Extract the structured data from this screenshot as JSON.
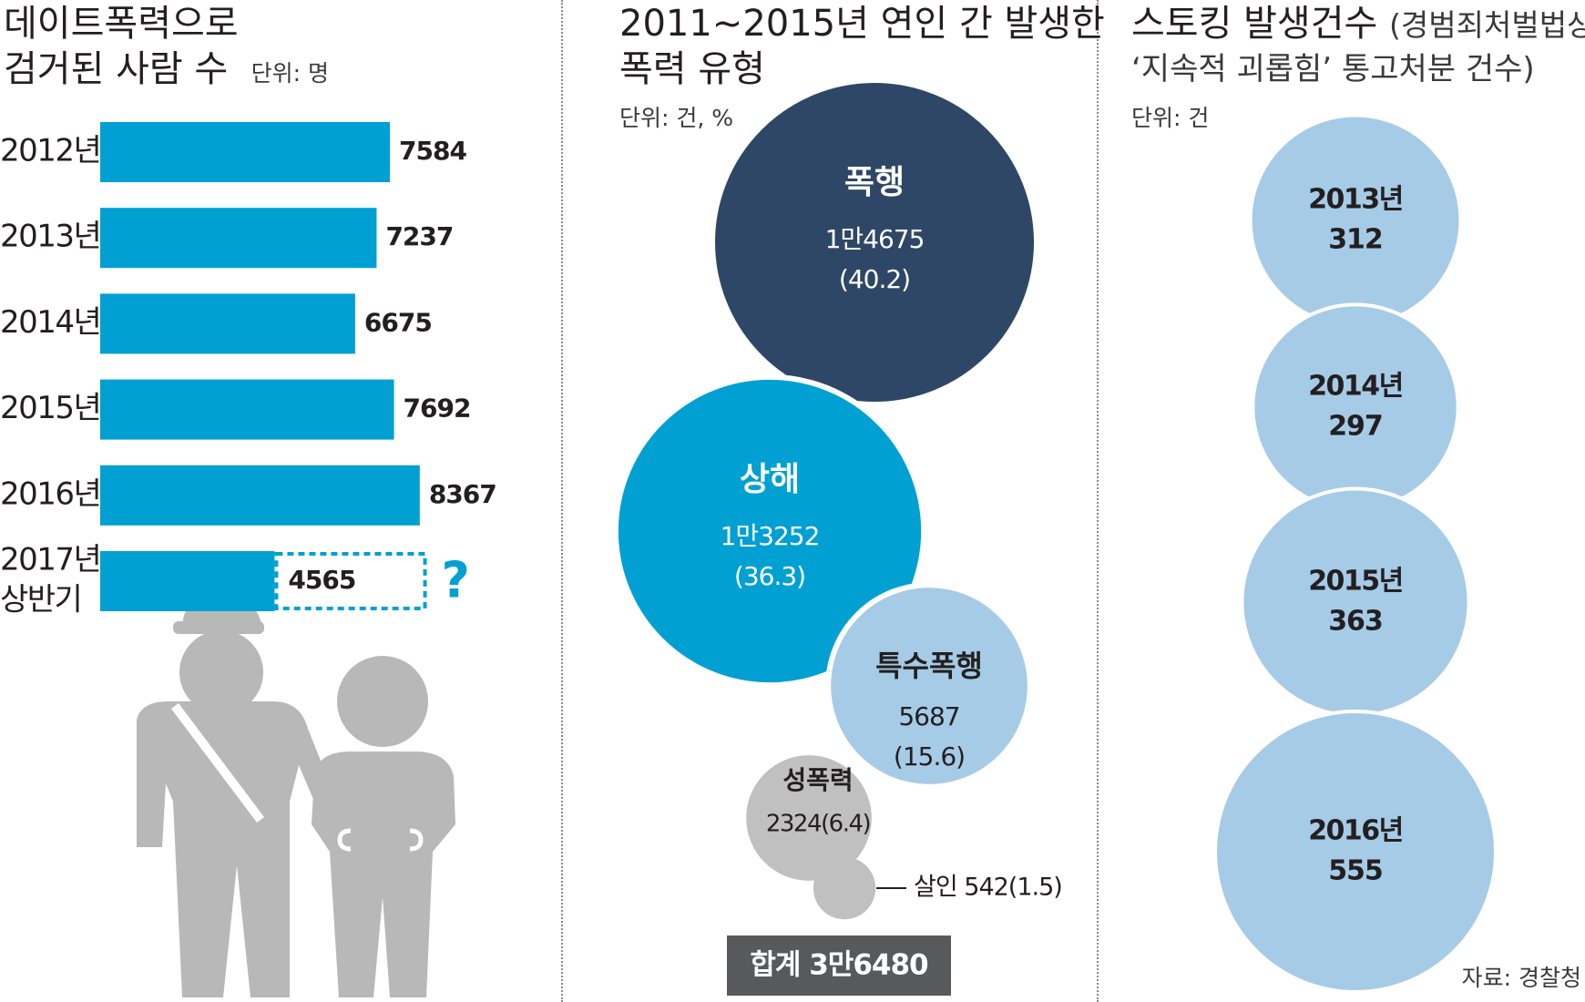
{
  "colors": {
    "bar": "#00a0d2",
    "violence": "#2e4766",
    "injury": "#00a0d2",
    "special": "#a6cbe7",
    "minor": "#c0c0c0",
    "stalking": "#a6cbe7",
    "figure": "#b8b8b8",
    "total_box": "#58595b"
  },
  "panel1": {
    "title_line1": "데이트폭력으로",
    "title_line2": "검거된 사람 수",
    "unit": "단위: 명"
  },
  "panel2": {
    "title_line1": "2011~2015년 연인 간 발생한",
    "title_line2": "폭력 유형",
    "unit": "단위: 건, %",
    "total": "합계 3만6480"
  },
  "panel3": {
    "title_a": "스토킹 발생건수",
    "title_b": "(경범죄처벌법상",
    "title_line2": "‘지속적 괴롭힘’ 통고처분 건수)",
    "unit": "단위: 건",
    "source": "자료: 경찰청"
  },
  "chart_data": [
    {
      "type": "bar",
      "orientation": "horizontal",
      "title": "데이트폭력으로 검거된 사람 수",
      "unit": "단위: 명",
      "categories": [
        "2012년",
        "2013년",
        "2014년",
        "2015년",
        "2016년",
        "2017년 상반기"
      ],
      "category_lines": [
        [
          "2012년"
        ],
        [
          "2013년"
        ],
        [
          "2014년"
        ],
        [
          "2015년"
        ],
        [
          "2016년"
        ],
        [
          "2017년",
          "상반기"
        ]
      ],
      "values": [
        7584,
        7237,
        6675,
        7692,
        8367,
        4565
      ],
      "value_labels": [
        "7584",
        "7237",
        "6675",
        "7692",
        "8367",
        "4565"
      ],
      "annotation": "?"
    },
    {
      "type": "bubble",
      "title": "2011~2015년 연인 간 발생한 폭력 유형",
      "unit": "단위: 건, %",
      "items": [
        {
          "name": "폭행",
          "value": 14675,
          "percent": 40.2,
          "count_label": "1만4675",
          "pct_label": "(40.2)"
        },
        {
          "name": "상해",
          "value": 13252,
          "percent": 36.3,
          "count_label": "1만3252",
          "pct_label": "(36.3)"
        },
        {
          "name": "특수폭행",
          "value": 5687,
          "percent": 15.6,
          "count_label": "5687",
          "pct_label": "(15.6)"
        },
        {
          "name": "성폭력",
          "value": 2324,
          "percent": 6.4,
          "count_label": "2324(6.4)"
        },
        {
          "name": "살인",
          "value": 542,
          "percent": 1.5,
          "count_label": "살인 542(1.5)"
        }
      ],
      "total": "합계 3만6480"
    },
    {
      "type": "bubble",
      "title": "스토킹 발생건수 (경범죄처벌법상 ‘지속적 괴롭힘’ 통고처분 건수)",
      "unit": "단위: 건",
      "items": [
        {
          "year": "2013년",
          "value": 312,
          "value_label": "312"
        },
        {
          "year": "2014년",
          "value": 297,
          "value_label": "297"
        },
        {
          "year": "2015년",
          "value": 363,
          "value_label": "363"
        },
        {
          "year": "2016년",
          "value": 555,
          "value_label": "555"
        }
      ]
    }
  ]
}
